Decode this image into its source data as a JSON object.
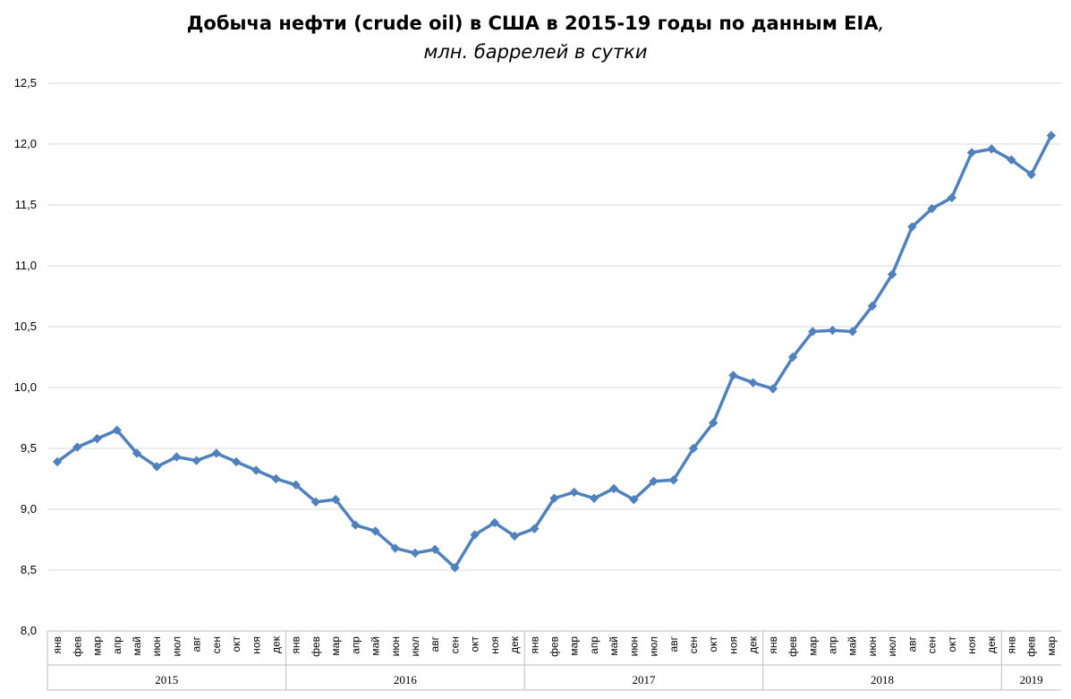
{
  "title": {
    "main": "Добыча нефти (crude oil) в США в 2015-19 годы по данным EIA",
    "main_suffix": ",",
    "subtitle": "млн. баррелей в сутки"
  },
  "colors": {
    "series": "#4f81bd",
    "grid": "#d9d9d9",
    "axis": "#bfbfbf"
  },
  "chart_data": {
    "type": "line",
    "title": "Добыча нефти (crude oil) в США в 2015-19 годы по данным EIA, млн. баррелей в сутки",
    "xlabel": "",
    "ylabel": "",
    "ylim": [
      8.0,
      12.5
    ],
    "yticks": [
      "8,0",
      "8,5",
      "9,0",
      "9,5",
      "10,0",
      "10,5",
      "11,0",
      "11,5",
      "12,0",
      "12,5"
    ],
    "grid": true,
    "legend": "none",
    "marker": "diamond",
    "years": [
      {
        "label": "2015",
        "months": 12
      },
      {
        "label": "2016",
        "months": 12
      },
      {
        "label": "2017",
        "months": 12
      },
      {
        "label": "2018",
        "months": 12
      },
      {
        "label": "2019",
        "months": 3
      }
    ],
    "categories": [
      "янв",
      "фев",
      "мар",
      "апр",
      "май",
      "июн",
      "июл",
      "авг",
      "сен",
      "окт",
      "ноя",
      "дек",
      "янв",
      "фев",
      "мар",
      "апр",
      "май",
      "июн",
      "июл",
      "авг",
      "сен",
      "окт",
      "ноя",
      "дек",
      "янв",
      "фев",
      "мар",
      "апр",
      "май",
      "июн",
      "июл",
      "авг",
      "сен",
      "окт",
      "ноя",
      "дек",
      "янв",
      "фев",
      "мар",
      "апр",
      "май",
      "июн",
      "июл",
      "авг",
      "сен",
      "окт",
      "ноя",
      "дек",
      "янв",
      "фев",
      "мар"
    ],
    "series": [
      {
        "values": [
          9.39,
          9.51,
          9.58,
          9.65,
          9.46,
          9.35,
          9.43,
          9.4,
          9.46,
          9.39,
          9.32,
          9.25,
          9.2,
          9.06,
          9.08,
          8.87,
          8.82,
          8.68,
          8.64,
          8.67,
          8.52,
          8.79,
          8.89,
          8.78,
          8.84,
          9.09,
          9.14,
          9.09,
          9.17,
          9.08,
          9.23,
          9.24,
          9.5,
          9.71,
          10.1,
          10.04,
          9.99,
          10.25,
          10.46,
          10.47,
          10.46,
          10.67,
          10.93,
          11.32,
          11.47,
          11.56,
          11.93,
          11.96,
          11.87,
          11.75,
          12.07
        ]
      }
    ]
  }
}
